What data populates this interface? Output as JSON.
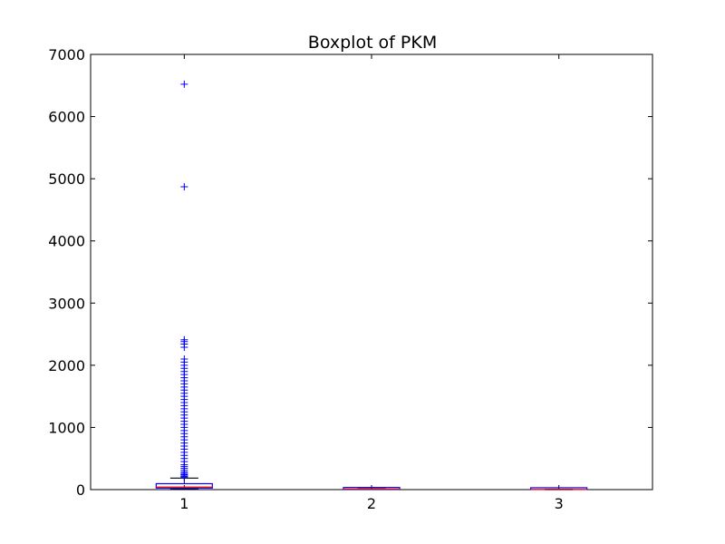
{
  "chart_data": {
    "type": "box",
    "title": "Boxplot of PKM",
    "xlabel": "",
    "ylabel": "",
    "categories": [
      "1",
      "2",
      "3"
    ],
    "ylim": [
      0,
      7000
    ],
    "yticks": [
      0,
      1000,
      2000,
      3000,
      4000,
      5000,
      6000,
      7000
    ],
    "grid": false,
    "colors": {
      "box": "#0000ff",
      "median": "#ff0000",
      "whisker": "#000000",
      "flier": "#0000ff"
    },
    "boxes": [
      {
        "category": "1",
        "whislo": 10,
        "q1": 25,
        "med": 40,
        "q3": 95,
        "whishi": 185,
        "fliers": [
          6520,
          4870,
          2410,
          2380,
          2340,
          2290,
          2100,
          2050,
          2000,
          1950,
          1900,
          1850,
          1800,
          1750,
          1700,
          1650,
          1600,
          1550,
          1500,
          1450,
          1400,
          1350,
          1300,
          1250,
          1200,
          1150,
          1100,
          1050,
          1000,
          950,
          900,
          850,
          800,
          750,
          700,
          650,
          600,
          550,
          500,
          450,
          400,
          370,
          340,
          310,
          280,
          260,
          240,
          220,
          210,
          200
        ]
      },
      {
        "category": "2",
        "whislo": 2,
        "q1": 5,
        "med": 10,
        "q3": 20,
        "whishi": 30,
        "fliers": []
      },
      {
        "category": "3",
        "whislo": 0,
        "q1": 1,
        "med": 2,
        "q3": 4,
        "whishi": 6,
        "fliers": []
      }
    ]
  }
}
